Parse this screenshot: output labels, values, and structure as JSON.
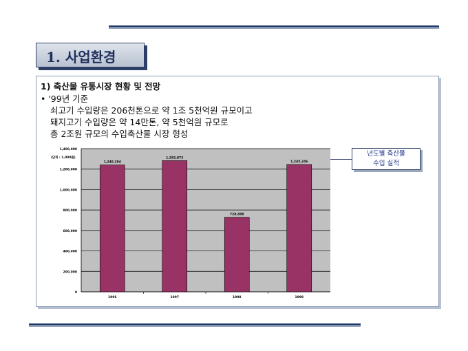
{
  "section": {
    "title": "1. 사업환경"
  },
  "content": {
    "heading": "1) 축산물 유통시장 현황 및 전망",
    "bullet": "• '99년 기준",
    "lines": [
      "쇠고기 수입량은 206천톤으로 약 1조 5천억원 규모이고",
      "돼지고기 수입량은 약 14만톤, 약 5천억원 규모로",
      "총 2조원 규모의 수입축산물 시장 형성"
    ]
  },
  "callout": {
    "line1": "년도별 축산물",
    "line2": "수입 실적"
  },
  "colors": {
    "bar": "#993366",
    "navy": "#1f3a68",
    "plot_bg": "#c0c0c0"
  },
  "chart_data": {
    "type": "bar",
    "unit_label": "(단위 : 1,000원)",
    "categories": [
      "1996",
      "1997",
      "1998",
      "1999"
    ],
    "values": [
      1240284,
      1282872,
      728888,
      1245246
    ],
    "value_labels": [
      "1,240,284",
      "1,282,872",
      "728,888",
      "1,245,246"
    ],
    "yticks": [
      "0",
      "200,000",
      "400,000",
      "600,000",
      "800,000",
      "1,000,000",
      "1,200,000",
      "1,400,000"
    ],
    "ylim": [
      0,
      1400000
    ],
    "grid": true
  }
}
